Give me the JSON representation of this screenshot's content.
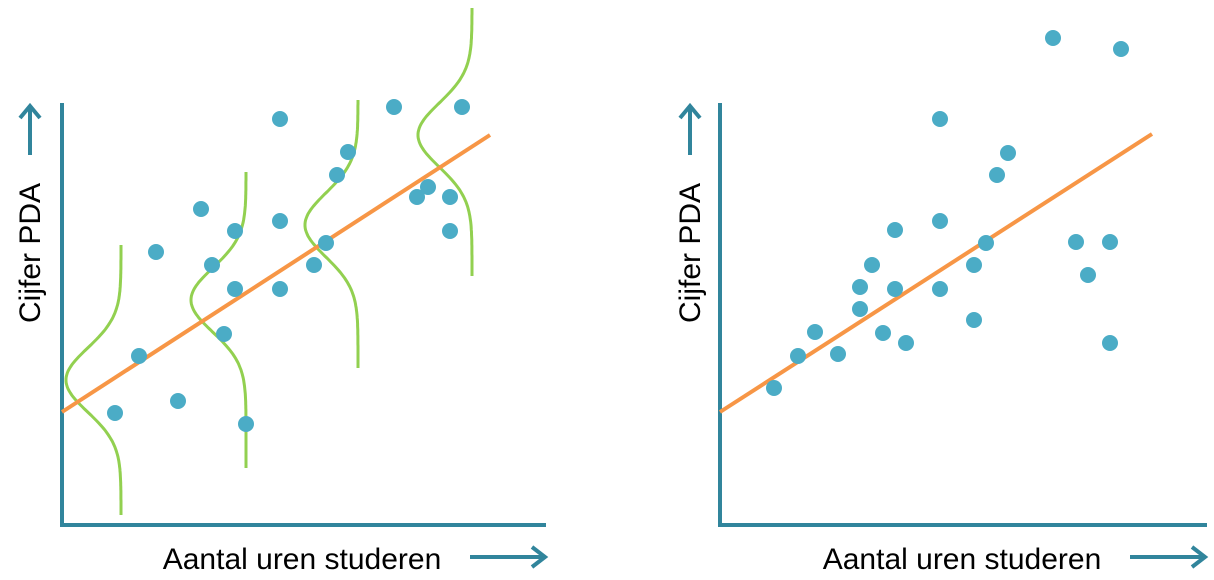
{
  "left_panel": {
    "y_axis_label": "Cijfer PDA",
    "x_axis_label": "Aantal uren studeren"
  },
  "right_panel": {
    "y_axis_label": "Cijfer PDA",
    "x_axis_label": "Aantal uren studeren"
  }
}
